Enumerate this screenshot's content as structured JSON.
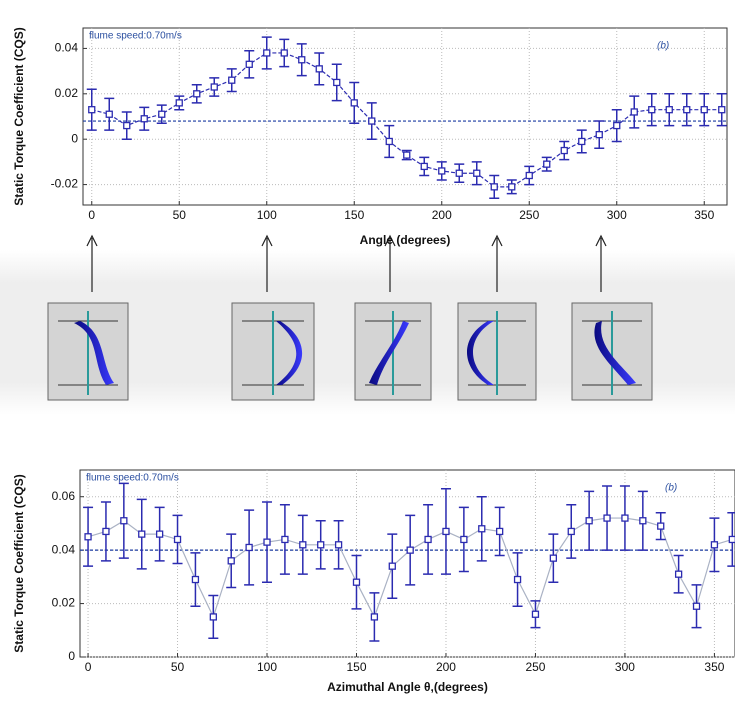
{
  "chart_data": [
    {
      "type": "line",
      "x_label": "Angle (degrees)",
      "y_label": "Static Torque Coefficient (CQS)",
      "annotations": [
        "flume speed:0.70m/s",
        "(b)"
      ],
      "x": [
        0,
        10,
        20,
        30,
        40,
        50,
        60,
        70,
        80,
        90,
        100,
        110,
        120,
        130,
        140,
        150,
        160,
        170,
        180,
        190,
        200,
        210,
        220,
        230,
        240,
        250,
        260,
        270,
        280,
        290,
        300,
        310,
        320,
        330,
        340,
        350,
        360
      ],
      "series": [
        {
          "color": "#2b2bb0",
          "line_color": "#2b2bb0",
          "line_dashed": true,
          "values": [
            0.013,
            0.011,
            0.006,
            0.009,
            0.011,
            0.016,
            0.02,
            0.023,
            0.026,
            0.033,
            0.038,
            0.038,
            0.035,
            0.031,
            0.025,
            0.016,
            0.008,
            -0.001,
            -0.007,
            -0.012,
            -0.014,
            -0.015,
            -0.015,
            -0.021,
            -0.021,
            -0.016,
            -0.011,
            -0.005,
            -0.001,
            0.002,
            0.006,
            0.012,
            0.013,
            0.013,
            0.013,
            0.013,
            0.013
          ],
          "errors": [
            0.009,
            0.007,
            0.006,
            0.005,
            0.004,
            0.003,
            0.004,
            0.004,
            0.005,
            0.006,
            0.007,
            0.006,
            0.007,
            0.007,
            0.008,
            0.009,
            0.008,
            0.007,
            0.002,
            0.004,
            0.004,
            0.004,
            0.005,
            0.005,
            0.003,
            0.004,
            0.003,
            0.004,
            0.005,
            0.006,
            0.007,
            0.007,
            0.007,
            0.007,
            0.007,
            0.007,
            0.007
          ]
        }
      ],
      "reference_line": 0.008,
      "xlim": [
        -5,
        363
      ],
      "ylim": [
        -0.029,
        0.049
      ],
      "xticks": [
        0,
        50,
        100,
        150,
        200,
        250,
        300,
        350
      ],
      "yticks": [
        -0.02,
        0,
        0.02,
        0.04
      ],
      "grid": true
    },
    {
      "type": "line",
      "x_label": "Azimuthal Angle θ,(degrees)",
      "y_label": "Static Torque Coefficient (CQS)",
      "annotations": [
        "flume speed:0.70m/s",
        "(b)"
      ],
      "x": [
        0,
        10,
        20,
        30,
        40,
        50,
        60,
        70,
        80,
        90,
        100,
        110,
        120,
        130,
        140,
        150,
        160,
        170,
        180,
        190,
        200,
        210,
        220,
        230,
        240,
        250,
        260,
        270,
        280,
        290,
        300,
        310,
        320,
        330,
        340,
        350,
        360
      ],
      "series": [
        {
          "color": "#2b2bb0",
          "line_color": "#aab2c4",
          "line_dashed": false,
          "values": [
            0.045,
            0.047,
            0.051,
            0.046,
            0.046,
            0.044,
            0.029,
            0.015,
            0.036,
            0.041,
            0.043,
            0.044,
            0.042,
            0.042,
            0.042,
            0.028,
            0.015,
            0.034,
            0.04,
            0.044,
            0.047,
            0.044,
            0.048,
            0.047,
            0.029,
            0.016,
            0.037,
            0.047,
            0.051,
            0.052,
            0.052,
            0.051,
            0.049,
            0.031,
            0.019,
            0.042,
            0.044
          ],
          "errors": [
            0.011,
            0.011,
            0.014,
            0.013,
            0.01,
            0.009,
            0.01,
            0.008,
            0.01,
            0.014,
            0.015,
            0.013,
            0.011,
            0.009,
            0.009,
            0.01,
            0.009,
            0.012,
            0.013,
            0.013,
            0.016,
            0.012,
            0.012,
            0.009,
            0.01,
            0.005,
            0.009,
            0.01,
            0.011,
            0.012,
            0.012,
            0.011,
            0.005,
            0.007,
            0.008,
            0.01,
            0.01
          ]
        }
      ],
      "reference_line": 0.04,
      "xlim": [
        -4.5,
        361.5
      ],
      "ylim": [
        0,
        0.07
      ],
      "xticks": [
        0,
        50,
        100,
        150,
        200,
        250,
        300,
        350
      ],
      "yticks": [
        0,
        0.02,
        0.04,
        0.06
      ],
      "grid": true
    }
  ]
}
